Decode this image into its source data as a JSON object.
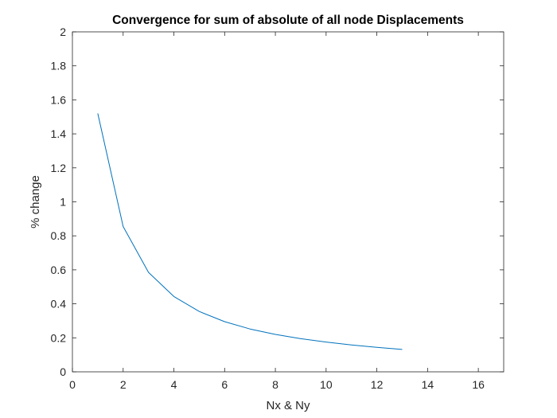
{
  "chart_data": {
    "type": "line",
    "title": "Convergence for sum of absolute of all node Displacements",
    "xlabel": "Nx & Ny",
    "ylabel": "% change",
    "xlim": [
      0,
      17
    ],
    "ylim": [
      0,
      2
    ],
    "xticks": [
      0,
      2,
      4,
      6,
      8,
      10,
      12,
      14,
      16
    ],
    "yticks": [
      0,
      0.2,
      0.4,
      0.6,
      0.8,
      1,
      1.2,
      1.4,
      1.6,
      1.8,
      2
    ],
    "grid": false,
    "box": true,
    "series": [
      {
        "color": "#0072BD",
        "x": [
          1,
          2,
          3,
          4,
          5,
          6,
          7,
          8,
          9,
          10,
          11,
          12,
          13
        ],
        "y": [
          1.52,
          0.855,
          0.585,
          0.443,
          0.355,
          0.295,
          0.252,
          0.22,
          0.195,
          0.175,
          0.158,
          0.144,
          0.132
        ]
      }
    ]
  }
}
